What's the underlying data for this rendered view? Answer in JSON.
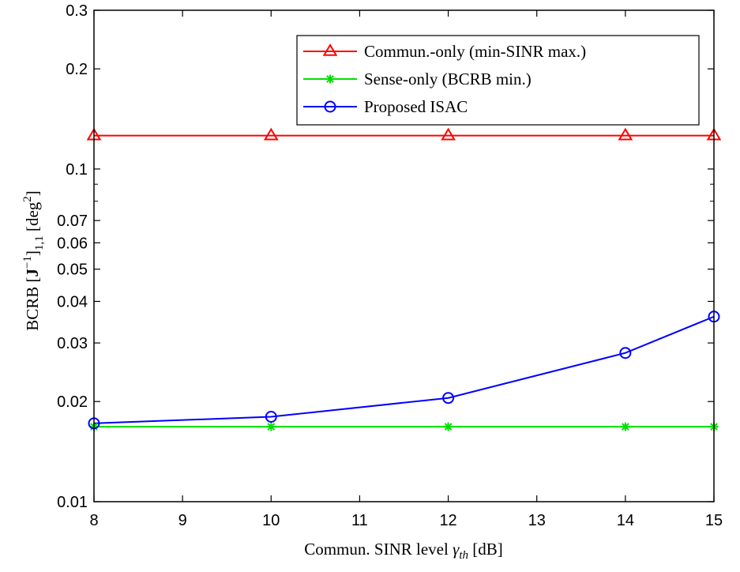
{
  "chart_data": {
    "type": "line",
    "y_scale": "log",
    "x": [
      8,
      10,
      12,
      14,
      15
    ],
    "xlim": [
      8,
      15
    ],
    "ylim": [
      0.01,
      0.3
    ],
    "x_ticks": [
      8,
      9,
      10,
      11,
      12,
      13,
      14,
      15
    ],
    "x_tick_labels": [
      "8",
      "9",
      "10",
      "11",
      "12",
      "13",
      "14",
      "15"
    ],
    "y_ticks": [
      0.01,
      0.02,
      0.03,
      0.04,
      0.05,
      0.06,
      0.07,
      0.1,
      0.2,
      0.3
    ],
    "y_tick_labels": [
      "0.01",
      "0.02",
      "0.03",
      "0.04",
      "0.05",
      "0.06",
      "0.07",
      "0.1",
      "0.2",
      "0.3"
    ],
    "xlabel": {
      "prefix": "Commun. SINR level ",
      "symbol": "γ",
      "subscript": "th",
      "suffix": " [dB]"
    },
    "ylabel": {
      "prefix": "BCRB [",
      "bold": "J",
      "sup1": "−1",
      "close": "]",
      "sub": "1,1",
      "unit_open": " [deg",
      "sup2": "2",
      "unit_close": "]"
    },
    "legend_position": "top-right",
    "series": [
      {
        "name": "Commun.-only (min-SINR max.)",
        "color": "#ff0000",
        "marker": "triangle",
        "values": [
          0.126,
          0.126,
          0.126,
          0.126,
          0.126
        ]
      },
      {
        "name": "Sense-only (BCRB min.)",
        "color": "#00e000",
        "marker": "asterisk",
        "values": [
          0.0168,
          0.0168,
          0.0168,
          0.0168,
          0.0168
        ]
      },
      {
        "name": "Proposed ISAC",
        "color": "#0000ff",
        "marker": "circle",
        "values": [
          0.0172,
          0.018,
          0.0205,
          0.028,
          0.036
        ]
      }
    ]
  }
}
